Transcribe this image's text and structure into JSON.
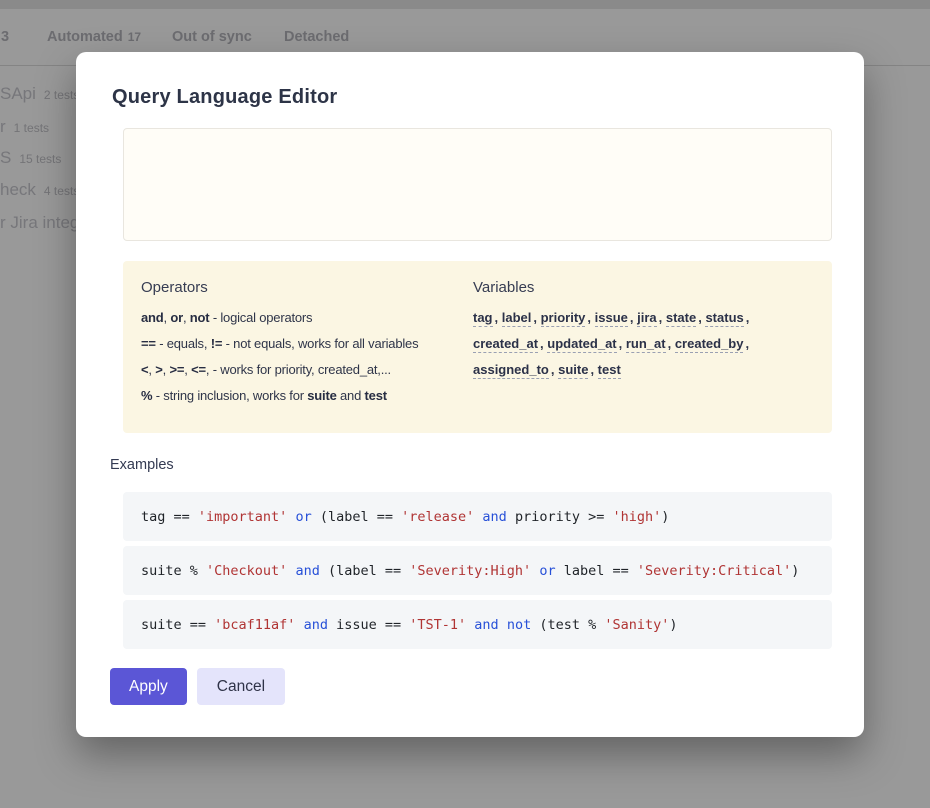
{
  "background": {
    "top_tabs": [
      {
        "label": "3",
        "count": ""
      },
      {
        "label": "Automated",
        "count": "17"
      },
      {
        "label": "Out of sync",
        "count": ""
      },
      {
        "label": "Detached",
        "count": ""
      }
    ],
    "suite_list": [
      {
        "name": "SApi",
        "count": "2 tests"
      },
      {
        "name": "r",
        "count": "1 tests"
      },
      {
        "name": "S",
        "count": "15 tests"
      },
      {
        "name": "heck",
        "count": "4 tests"
      },
      {
        "name": "r Jira integr",
        "count": ""
      }
    ]
  },
  "modal": {
    "title": "Query Language Editor",
    "query_input": {
      "value": ""
    },
    "help": {
      "operators": {
        "title": "Operators",
        "lines": [
          [
            {
              "t": "and",
              "c": "b"
            },
            {
              "t": ", "
            },
            {
              "t": "or",
              "c": "b"
            },
            {
              "t": ", "
            },
            {
              "t": "not",
              "c": "b"
            },
            {
              "t": " - logical operators"
            }
          ],
          [
            {
              "t": "==",
              "c": "b"
            },
            {
              "t": " - equals, "
            },
            {
              "t": "!=",
              "c": "b"
            },
            {
              "t": " - not equals, works for all variables"
            }
          ],
          [
            {
              "t": "<",
              "c": "b"
            },
            {
              "t": ", "
            },
            {
              "t": ">",
              "c": "b"
            },
            {
              "t": ", "
            },
            {
              "t": ">=",
              "c": "b"
            },
            {
              "t": ", "
            },
            {
              "t": "<=",
              "c": "b"
            },
            {
              "t": ", - works for priority, created_at,..."
            }
          ],
          [
            {
              "t": "%",
              "c": "b"
            },
            {
              "t": " - string inclusion, works for "
            },
            {
              "t": "suite",
              "c": "b"
            },
            {
              "t": " and "
            },
            {
              "t": "test",
              "c": "b"
            }
          ]
        ]
      },
      "variables": {
        "title": "Variables",
        "lines": [
          [
            "tag",
            "label",
            "priority",
            "issue",
            "jira",
            "state",
            "status"
          ],
          [
            "created_at",
            "updated_at",
            "run_at",
            "created_by"
          ],
          [
            "assigned_to",
            "suite",
            "test"
          ]
        ]
      }
    },
    "examples": {
      "title": "Examples",
      "items": [
        {
          "tokens": [
            {
              "t": "tag == "
            },
            {
              "t": "'important'",
              "c": "str"
            },
            {
              "t": " "
            },
            {
              "t": "or",
              "c": "kw"
            },
            {
              "t": " (label == "
            },
            {
              "t": "'release'",
              "c": "str"
            },
            {
              "t": " "
            },
            {
              "t": "and",
              "c": "kw"
            },
            {
              "t": " priority >= "
            },
            {
              "t": "'high'",
              "c": "str"
            },
            {
              "t": ")"
            }
          ]
        },
        {
          "tokens": [
            {
              "t": "suite % "
            },
            {
              "t": "'Checkout'",
              "c": "str"
            },
            {
              "t": " "
            },
            {
              "t": "and",
              "c": "kw"
            },
            {
              "t": " (label == "
            },
            {
              "t": "'Severity:High'",
              "c": "str"
            },
            {
              "t": " "
            },
            {
              "t": "or",
              "c": "kw"
            },
            {
              "t": " label == "
            },
            {
              "t": "'Severity:Critical'",
              "c": "str"
            },
            {
              "t": ")"
            }
          ]
        },
        {
          "tokens": [
            {
              "t": "suite == "
            },
            {
              "t": "'bcaf11af'",
              "c": "str"
            },
            {
              "t": " "
            },
            {
              "t": "and",
              "c": "kw"
            },
            {
              "t": " issue == "
            },
            {
              "t": "'TST-1'",
              "c": "str"
            },
            {
              "t": " "
            },
            {
              "t": "and",
              "c": "kw"
            },
            {
              "t": " "
            },
            {
              "t": "not",
              "c": "kw"
            },
            {
              "t": " (test % "
            },
            {
              "t": "'Sanity'",
              "c": "str"
            },
            {
              "t": ")"
            }
          ]
        }
      ]
    },
    "apply_label": "Apply",
    "cancel_label": "Cancel"
  },
  "colors": {
    "accent": "#5b56d6",
    "cancel_bg": "#e4e4fb",
    "help_panel_bg": "#fbf6e3",
    "code_box_bg": "#f4f6f8",
    "code_string": "#b03434",
    "code_keyword": "#2750d8"
  }
}
